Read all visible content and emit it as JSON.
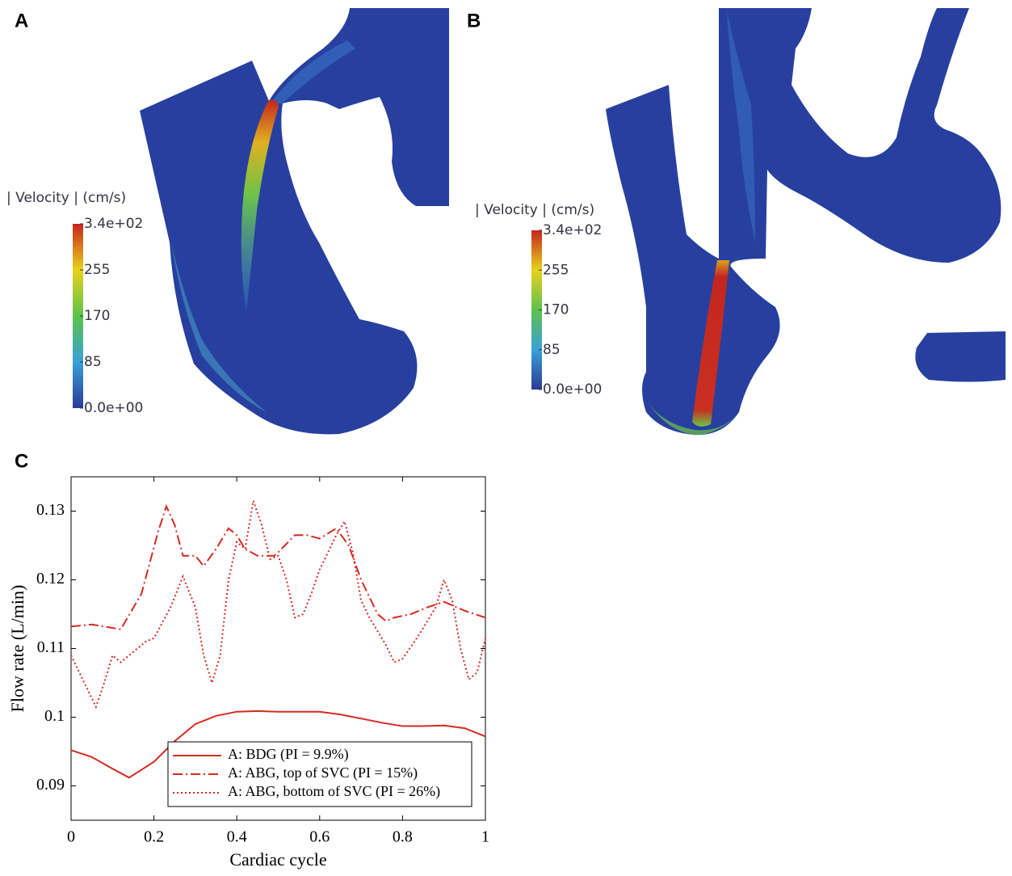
{
  "panels": [
    {
      "label": "A",
      "colorbar": {
        "title": "| Velocity | (cm/s)",
        "lim": [
          0,
          340
        ],
        "ticks": [
          {
            "value": 340,
            "label": "3.4e+02"
          },
          255,
          170,
          85,
          {
            "value": 0,
            "label": "0.0e+00"
          }
        ]
      }
    },
    {
      "label": "B",
      "colorbar": {
        "title": "| Velocity | (cm/s)",
        "lim": [
          0,
          340
        ],
        "ticks": [
          {
            "value": 340,
            "label": "3.4e+02"
          },
          255,
          170,
          85,
          {
            "value": 0,
            "label": "0.0e+00"
          }
        ]
      }
    }
  ],
  "chart_data": {
    "type": "line",
    "label": "C",
    "xlabel": "Cardiac cycle",
    "ylabel": "Flow rate  (L/min)",
    "xlim": [
      0,
      1
    ],
    "xticks": [
      0,
      0.2,
      0.4,
      0.6,
      0.8,
      1
    ],
    "ylim": [
      0.085,
      0.135
    ],
    "yticks": [
      0.09,
      0.1,
      0.11,
      0.12,
      0.13
    ],
    "legend": "lower right",
    "series": [
      {
        "name": "A: BDG (PI = 9.9%)",
        "color": "#d42a20",
        "style": "solid",
        "x": [
          0,
          0.05,
          0.1,
          0.14,
          0.2,
          0.25,
          0.3,
          0.35,
          0.4,
          0.45,
          0.5,
          0.55,
          0.6,
          0.65,
          0.7,
          0.75,
          0.8,
          0.85,
          0.9,
          0.95,
          1
        ],
        "values": [
          0.0952,
          0.0942,
          0.0925,
          0.0912,
          0.0935,
          0.0965,
          0.099,
          0.1002,
          0.1008,
          0.1009,
          0.1008,
          0.1008,
          0.1008,
          0.1004,
          0.0998,
          0.0992,
          0.0987,
          0.0987,
          0.0988,
          0.0984,
          0.0972
        ]
      },
      {
        "name": "A: ABG, top of SVC (PI = 15%)",
        "color": "#d42a20",
        "style": "dashdot",
        "x": [
          0,
          0.05,
          0.12,
          0.17,
          0.21,
          0.23,
          0.25,
          0.27,
          0.3,
          0.32,
          0.35,
          0.38,
          0.4,
          0.42,
          0.45,
          0.49,
          0.5,
          0.54,
          0.57,
          0.6,
          0.64,
          0.67,
          0.7,
          0.74,
          0.76,
          0.78,
          0.82,
          0.86,
          0.9,
          0.95,
          1
        ],
        "values": [
          0.1132,
          0.1135,
          0.1128,
          0.118,
          0.127,
          0.1307,
          0.128,
          0.1235,
          0.1235,
          0.122,
          0.1245,
          0.1275,
          0.1265,
          0.1245,
          0.1235,
          0.1235,
          0.124,
          0.1265,
          0.1265,
          0.126,
          0.1275,
          0.125,
          0.12,
          0.115,
          0.114,
          0.1145,
          0.115,
          0.116,
          0.1168,
          0.1155,
          0.1145
        ]
      },
      {
        "name": "A: ABG, bottom of SVC (PI = 26%)",
        "color": "#d42a20",
        "style": "dotted",
        "x": [
          0,
          0.04,
          0.06,
          0.08,
          0.1,
          0.12,
          0.14,
          0.18,
          0.2,
          0.24,
          0.27,
          0.3,
          0.32,
          0.34,
          0.36,
          0.38,
          0.4,
          0.42,
          0.44,
          0.46,
          0.48,
          0.5,
          0.52,
          0.54,
          0.56,
          0.58,
          0.6,
          0.64,
          0.66,
          0.68,
          0.7,
          0.72,
          0.76,
          0.78,
          0.8,
          0.84,
          0.88,
          0.9,
          0.92,
          0.94,
          0.96,
          0.98,
          1
        ],
        "values": [
          0.109,
          0.104,
          0.1015,
          0.105,
          0.109,
          0.108,
          0.109,
          0.111,
          0.1115,
          0.116,
          0.1205,
          0.116,
          0.109,
          0.105,
          0.109,
          0.12,
          0.1255,
          0.1245,
          0.1315,
          0.128,
          0.123,
          0.1235,
          0.12,
          0.1145,
          0.115,
          0.118,
          0.1215,
          0.1265,
          0.1285,
          0.124,
          0.117,
          0.1145,
          0.1105,
          0.108,
          0.1085,
          0.112,
          0.116,
          0.12,
          0.117,
          0.11,
          0.1055,
          0.1065,
          0.1115
        ]
      }
    ]
  }
}
